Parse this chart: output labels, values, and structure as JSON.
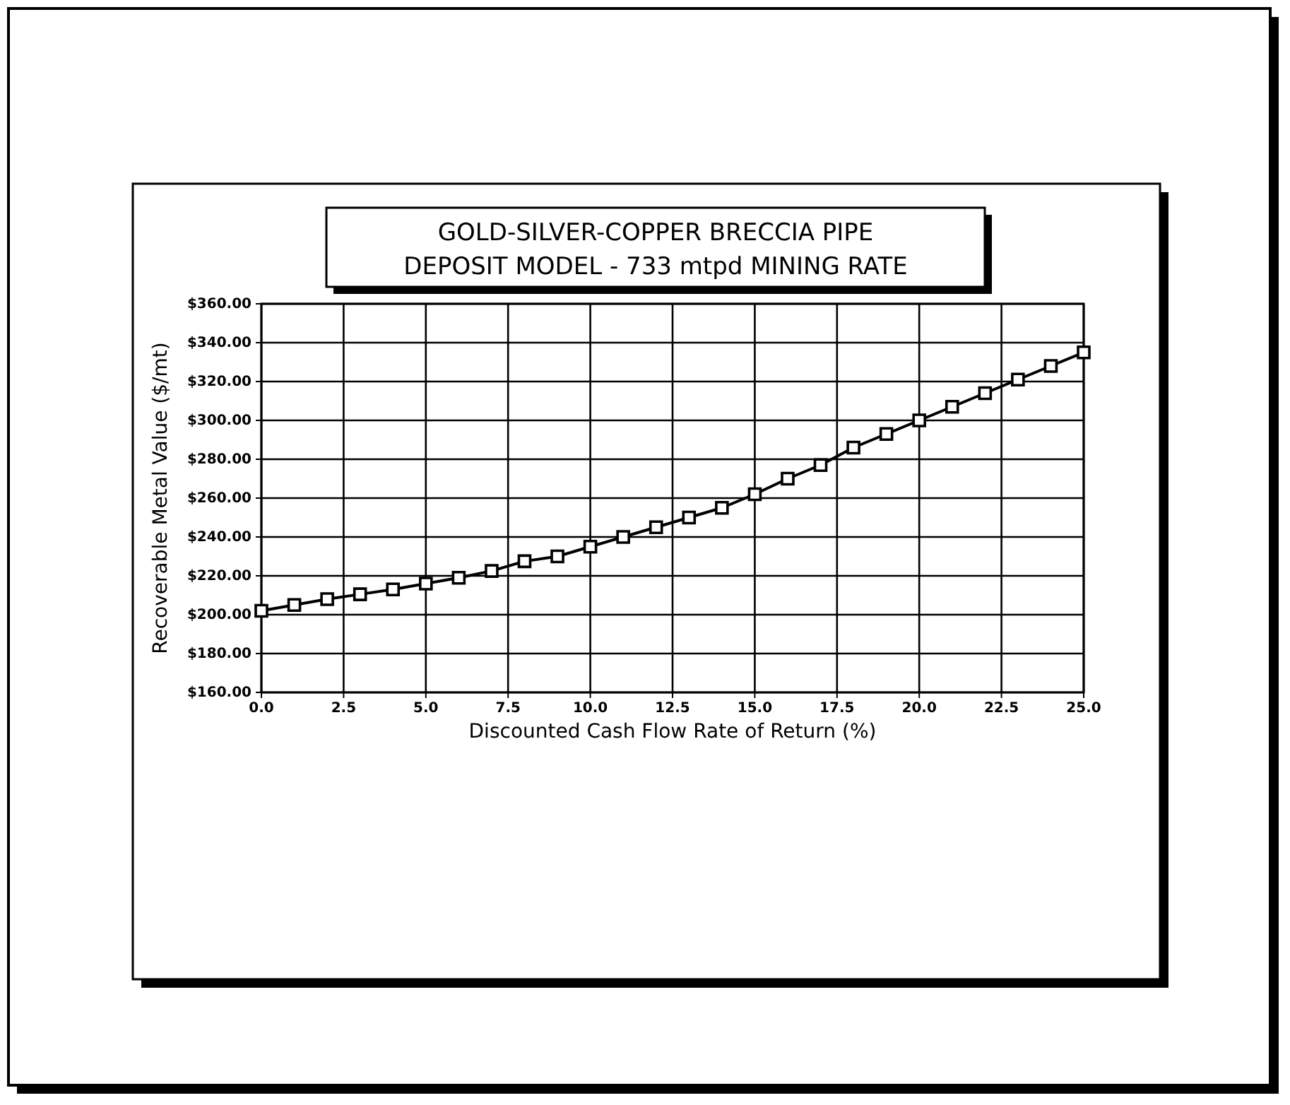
{
  "chart_data": {
    "type": "line",
    "title": "GOLD-SILVER-COPPER BRECCIA PIPE\nDEPOSIT MODEL - 733 mtpd MINING RATE",
    "xlabel": "Discounted Cash Flow Rate of Return (%)",
    "ylabel": "Recoverable Metal Value ($/mt)",
    "x": [
      0,
      1,
      2,
      3,
      4,
      5,
      6,
      7,
      8,
      9,
      10,
      11,
      12,
      13,
      14,
      15,
      16,
      17,
      18,
      19,
      20,
      21,
      22,
      23,
      24,
      25
    ],
    "series": [
      {
        "color": "#000000",
        "values": [
          202,
          205,
          208,
          210.5,
          213,
          216,
          219,
          222.5,
          227.5,
          230,
          235,
          240,
          245,
          250,
          255,
          262,
          270,
          277,
          286,
          293,
          300,
          307,
          314,
          321,
          328,
          335
        ]
      }
    ],
    "xlim": [
      0,
      25
    ],
    "xticks": [
      {
        "value": 0,
        "label": "0.0"
      },
      {
        "value": 2.5,
        "label": "2.5"
      },
      {
        "value": 5,
        "label": "5.0"
      },
      {
        "value": 7.5,
        "label": "7.5"
      },
      {
        "value": 10,
        "label": "10.0"
      },
      {
        "value": 12.5,
        "label": "12.5"
      },
      {
        "value": 15,
        "label": "15.0"
      },
      {
        "value": 17.5,
        "label": "17.5"
      },
      {
        "value": 20,
        "label": "20.0"
      },
      {
        "value": 22.5,
        "label": "22.5"
      },
      {
        "value": 25,
        "label": "25.0"
      }
    ],
    "ylim": [
      160,
      360
    ],
    "yticks": [
      {
        "value": 160,
        "label": "$160.00"
      },
      {
        "value": 180,
        "label": "$180.00"
      },
      {
        "value": 200,
        "label": "$200.00"
      },
      {
        "value": 220,
        "label": "$220.00"
      },
      {
        "value": 240,
        "label": "$240.00"
      },
      {
        "value": 260,
        "label": "$260.00"
      },
      {
        "value": 280,
        "label": "$280.00"
      },
      {
        "value": 300,
        "label": "$300.00"
      },
      {
        "value": 320,
        "label": "$320.00"
      },
      {
        "value": 340,
        "label": "$340.00"
      },
      {
        "value": 360,
        "label": "$360.00"
      }
    ],
    "grid": true,
    "marker": "square",
    "line_style": "solid"
  }
}
